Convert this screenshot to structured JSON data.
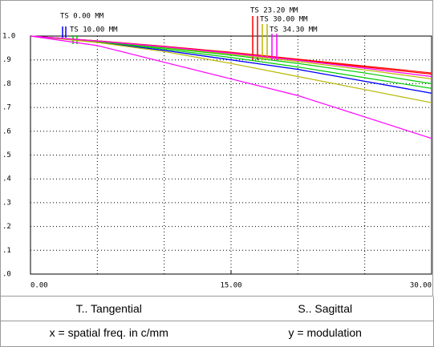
{
  "chart_data": {
    "type": "line",
    "xlabel": "x = spatial freq. in c/mm",
    "ylabel": "y = modulation",
    "tangential_label": "T.. Tangential",
    "sagittal_label": "S.. Sagittal",
    "x": [
      0,
      5,
      10,
      15,
      20,
      25,
      30
    ],
    "xlim": [
      0,
      30
    ],
    "ylim": [
      0,
      1
    ],
    "xticks": [
      {
        "value": 0,
        "label": "0.00"
      },
      {
        "value": 15,
        "label": "15.00"
      },
      {
        "value": 30,
        "label": "30.00"
      }
    ],
    "xgrid": [
      0,
      5,
      10,
      15,
      20,
      25,
      30
    ],
    "yticks": [
      {
        "value": 0,
        "label": ".0"
      },
      {
        "value": 0.1,
        "label": ".1"
      },
      {
        "value": 0.2,
        "label": ".2"
      },
      {
        "value": 0.3,
        "label": ".3"
      },
      {
        "value": 0.4,
        "label": ".4"
      },
      {
        "value": 0.5,
        "label": ".5"
      },
      {
        "value": 0.6,
        "label": ".6"
      },
      {
        "value": 0.7,
        "label": ".7"
      },
      {
        "value": 0.8,
        "label": ".8"
      },
      {
        "value": 0.9,
        "label": ".9"
      },
      {
        "value": 1,
        "label": "1.0"
      }
    ],
    "grid": true,
    "series": [
      {
        "name": "TS 0.00 MM",
        "color": "#0000ff",
        "tangential": [
          1,
          0.975,
          0.94,
          0.9,
          0.86,
          0.81,
          0.76
        ],
        "sagittal": [
          1,
          0.975,
          0.94,
          0.9,
          0.86,
          0.81,
          0.76
        ]
      },
      {
        "name": "TS 10.00 MM",
        "color": "#00cc00",
        "tangential": [
          1,
          0.977,
          0.945,
          0.91,
          0.87,
          0.825,
          0.78
        ],
        "sagittal": [
          1,
          0.978,
          0.95,
          0.92,
          0.885,
          0.845,
          0.8
        ]
      },
      {
        "name": "TS 23.20 MM",
        "color": "#ff0000",
        "tangential": [
          1,
          0.98,
          0.955,
          0.93,
          0.9,
          0.87,
          0.84
        ],
        "sagittal": [
          1,
          0.98,
          0.957,
          0.932,
          0.903,
          0.874,
          0.845
        ]
      },
      {
        "name": "TS 30.00 MM",
        "color": "#b8b800",
        "tangential": [
          1,
          0.973,
          0.935,
          0.885,
          0.83,
          0.775,
          0.72
        ],
        "sagittal": [
          1,
          0.979,
          0.953,
          0.925,
          0.893,
          0.858,
          0.82
        ]
      },
      {
        "name": "TS 34.30 MM",
        "color": "#ff00ff",
        "tangential": [
          1,
          0.96,
          0.89,
          0.82,
          0.75,
          0.66,
          0.57
        ],
        "sagittal": [
          1,
          0.979,
          0.955,
          0.928,
          0.898,
          0.865,
          0.83
        ]
      }
    ]
  }
}
